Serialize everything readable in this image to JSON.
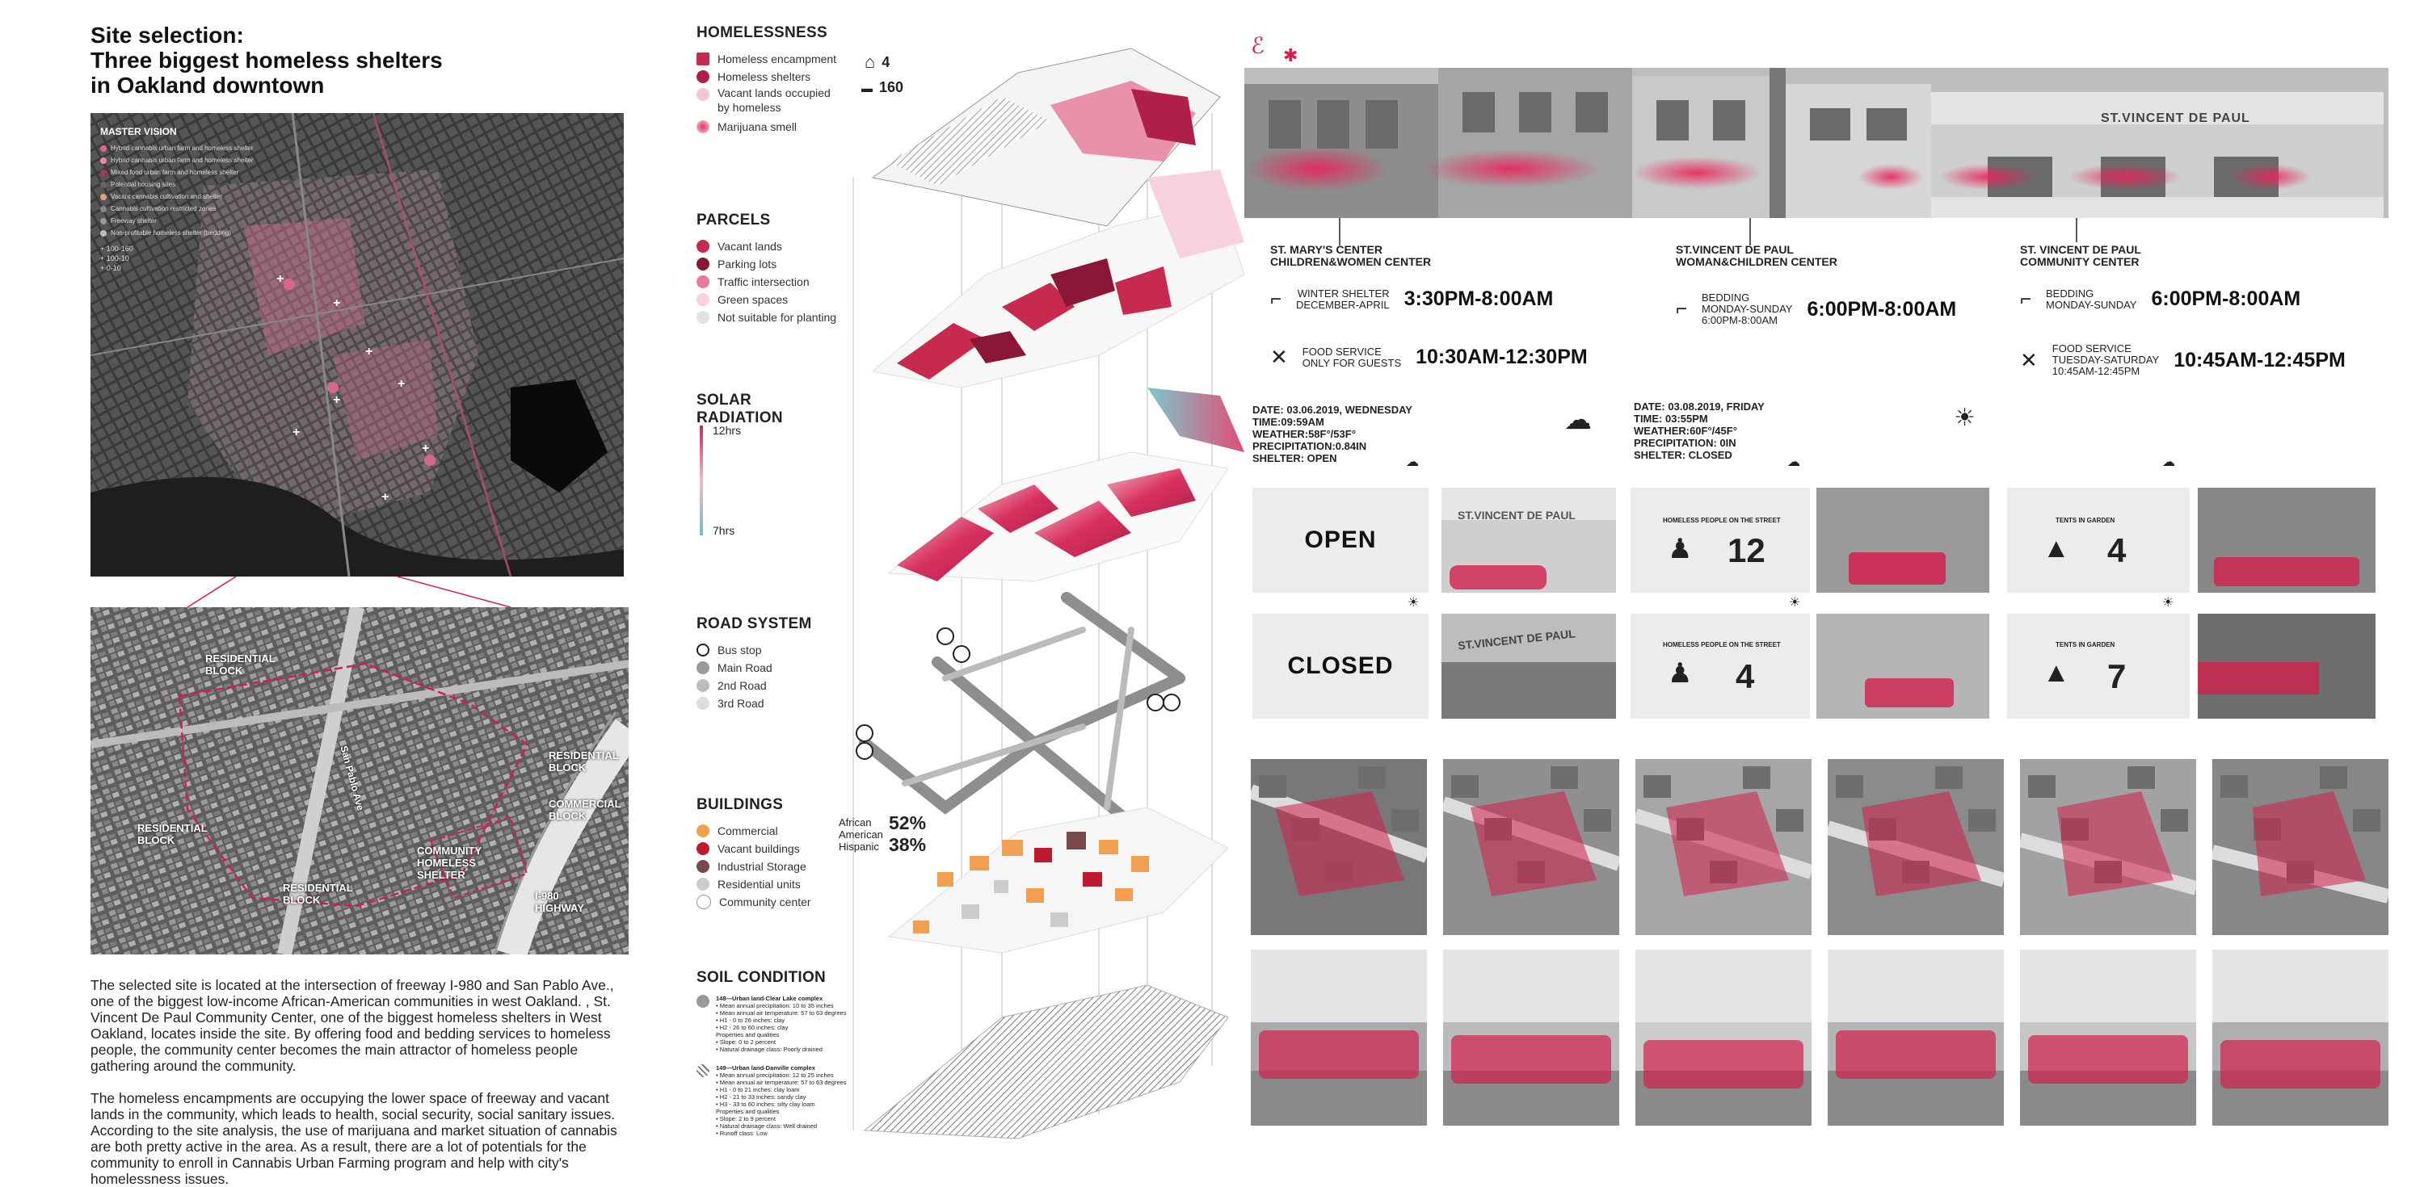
{
  "title": {
    "line1": "Site selection:",
    "line2": "Three biggest homeless shelters",
    "line3": "in Oakland downtown"
  },
  "master_vision": {
    "heading": "MASTER VISION",
    "items": [
      {
        "label": "Hybrid cannabis urban farm and homeless shelter",
        "color": "#d8688a"
      },
      {
        "label": "Hybrid cannabis urban farm and homeless shelter",
        "color": "#e88aa6"
      },
      {
        "label": "Mixed food urban farm and homeless shelter",
        "color": "#a33a5c"
      },
      {
        "label": "Potential housing sites",
        "color": "#666666"
      },
      {
        "label": "Vacant cannabis cultivation and shelter",
        "color": "#e0a080"
      },
      {
        "label": "Cannabis cultivation restricted zones",
        "color": "#888888"
      },
      {
        "label": "Freeway shelter",
        "color": "#999999"
      },
      {
        "label": "Non-profitable homeless shelter (bedding)",
        "color": "#bbbbbb"
      }
    ],
    "counts": [
      "+ 100-160",
      "+ 100-10",
      "+ 0-10"
    ]
  },
  "aerial_labels": {
    "residential_nw": "RESIDENTIAL BLOCK",
    "residential_e": "RESIDENTIAL BLOCK",
    "commercial": "COMMERCIAL BLOCK",
    "residential_w": "RESIDENTIAL BLOCK",
    "residential_s": "RESIDENTIAL BLOCK",
    "community": "COMMUNITY HOMELESS SHELTER",
    "highway": "I-980 HIGHWAY",
    "sanpablo": "San Pablo Ave"
  },
  "description": {
    "p1": "The selected site is located at the intersection of freeway I-980 and San Pablo Ave., one of the biggest low-income African-American communities in west Oakland. , St. Vincent De Paul Community Center, one of the biggest homeless shelters in West Oakland, locates inside the site. By offering food and bedding services to homeless people, the community center becomes the main attractor of homeless people gathering around the community.",
    "p2": "The homeless encampments are occupying the lower space of freeway and vacant lands in the community, which leads to health, social security, social sanitary issues. According to the site analysis, the use of marijuana and market situation of cannabis are both pretty active in the area. As a result, there are a lot of potentials for the community to enroll in Cannabis Urban Farming program and help with city's homelessness issues."
  },
  "layers": {
    "homelessness": {
      "heading": "HOMELESSNESS",
      "items": [
        {
          "label": "Homeless encampment",
          "color": "#c8294f"
        },
        {
          "label": "Homeless shelters",
          "color": "#b01f4a"
        },
        {
          "label": "Vacant lands occupied by homeless",
          "color": "#f2c8d4"
        },
        {
          "label": "Marijuana smell",
          "color": "#e03868"
        }
      ],
      "shelter_count": "4",
      "encampment_count": "160"
    },
    "parcels": {
      "heading": "PARCELS",
      "items": [
        {
          "label": "Vacant lands",
          "color": "#c8294f"
        },
        {
          "label": "Parking lots",
          "color": "#8a1638"
        },
        {
          "label": "Traffic intersection",
          "color": "#e87aa0"
        },
        {
          "label": "Green spaces",
          "color": "#f7d2dc"
        },
        {
          "label": "Not suitable for planting",
          "color": "#e2e2e2"
        }
      ]
    },
    "solar": {
      "heading": "SOLAR RADIATION",
      "max": "12hrs",
      "min": "7hrs"
    },
    "road": {
      "heading": "ROAD SYSTEM",
      "items": [
        {
          "label": "Bus stop",
          "color": "#222222"
        },
        {
          "label": "Main Road",
          "color": "#9a9a9a"
        },
        {
          "label": "2nd Road",
          "color": "#bdbdbd"
        },
        {
          "label": "3rd Road",
          "color": "#dddddd"
        }
      ]
    },
    "buildings": {
      "heading": "BUILDINGS",
      "items": [
        {
          "label": "Commercial",
          "color": "#f0a050"
        },
        {
          "label": "Vacant buildings",
          "color": "#c01830"
        },
        {
          "label": "Industrial Storage",
          "color": "#7a4a4a"
        },
        {
          "label": "Residential units",
          "color": "#cccccc"
        },
        {
          "label": "Community center",
          "color": "#ffffff"
        }
      ],
      "demo": [
        {
          "label": "African American",
          "value": "52%"
        },
        {
          "label": "Hispanic",
          "value": "38%"
        }
      ]
    },
    "soil": {
      "heading": "SOIL CONDITION",
      "items": [
        {
          "title": "148—Urban land-Clear Lake complex",
          "lines": [
            "• Mean annual precipitation: 10 to 35 inches",
            "• Mean annual air temperature: 57 to 63 degrees",
            "• H1 - 0 to 26 inches: clay",
            "• H2 - 26 to 60 inches: clay",
            "Properties and qualities",
            "• Slope: 0 to 2 percent",
            "• Natural drainage class: Poorly drained"
          ]
        },
        {
          "title": "149—Urban land-Danville complex",
          "lines": [
            "• Mean annual precipitation: 12 to 25 inches",
            "• Mean annual air temperature: 57 to 63 degrees",
            "• H1 - 0 to 21 inches: clay loam",
            "• H2 - 21 to 33 inches: sandy clay",
            "• H3 - 33 to 60 inches: silty clay loam",
            "Properties and qualities",
            "• Slope: 2 to 9 percent",
            "• Natural drainage class: Well drained",
            "• Runoff class: Low"
          ]
        }
      ]
    }
  },
  "shelters": [
    {
      "name": "ST. MARY'S CENTER CHILDREN&WOMEN CENTER",
      "name1": "ST. MARY'S CENTER",
      "name2": "CHILDREN&WOMEN CENTER",
      "bed_label1": "WINTER SHELTER",
      "bed_label2": "DECEMBER-APRIL",
      "bed_label3": "",
      "bed_time": "3:30PM-8:00AM",
      "food_label1": "FOOD SERVICE",
      "food_label2": "ONLY FOR GUESTS",
      "food_label3": "",
      "food_time": "10:30AM-12:30PM"
    },
    {
      "name": "ST.VINCENT DE PAUL WOMAN&CHILDREN CENTER",
      "name1": "ST.VINCENT DE PAUL",
      "name2": "WOMAN&CHILDREN CENTER",
      "bed_label1": "BEDDING",
      "bed_label2": "MONDAY-SUNDAY",
      "bed_label3": "6:00PM-8:00AM",
      "bed_time": "6:00PM-8:00AM",
      "food_label1": "",
      "food_label2": "",
      "food_label3": "",
      "food_time": ""
    },
    {
      "name": "ST. VINCENT DE PAUL COMMUNITY CENTER",
      "name1": "ST. VINCENT DE PAUL",
      "name2": "COMMUNITY CENTER",
      "bed_label1": "BEDDING",
      "bed_label2": "MONDAY-SUNDAY",
      "bed_label3": "",
      "bed_time": "6:00PM-8:00AM",
      "food_label1": "FOOD SERVICE",
      "food_label2": "TUESDAY-SATURDAY",
      "food_label3": "10:45AM-12:45PM",
      "food_time": "10:45AM-12:45PM"
    }
  ],
  "storefront_sign": "ST.VINCENT DE PAUL",
  "weather": [
    {
      "date": "DATE: 03.06.2019, WEDNESDAY",
      "time": "TIME:09:59AM",
      "weather": "WEATHER:58F°/53F°",
      "precip": "PRECIPITATION:0.84IN",
      "shelter": "SHELTER: OPEN"
    },
    {
      "date": "DATE: 03.08.2019, FRIDAY",
      "time": "TIME: 03:55PM",
      "weather": "WEATHER:60F°/45F°",
      "precip": "PRECIPITATION: 0IN",
      "shelter": "SHELTER: CLOSED"
    }
  ],
  "status_cards": {
    "open": "OPEN",
    "closed": "CLOSED",
    "people_label": "HOMELESS PEOPLE ON THE STREET",
    "people_rain": "12",
    "people_sun": "4",
    "tents_label": "TENTS IN GARDEN",
    "tents_rain": "4",
    "tents_sun": "7"
  },
  "sign_text": "ST.VINCENT DE PAUL",
  "colors": {
    "accent": "#d21f4d",
    "accent_light": "#ee7a9a",
    "gray": "#9a9a9a"
  }
}
